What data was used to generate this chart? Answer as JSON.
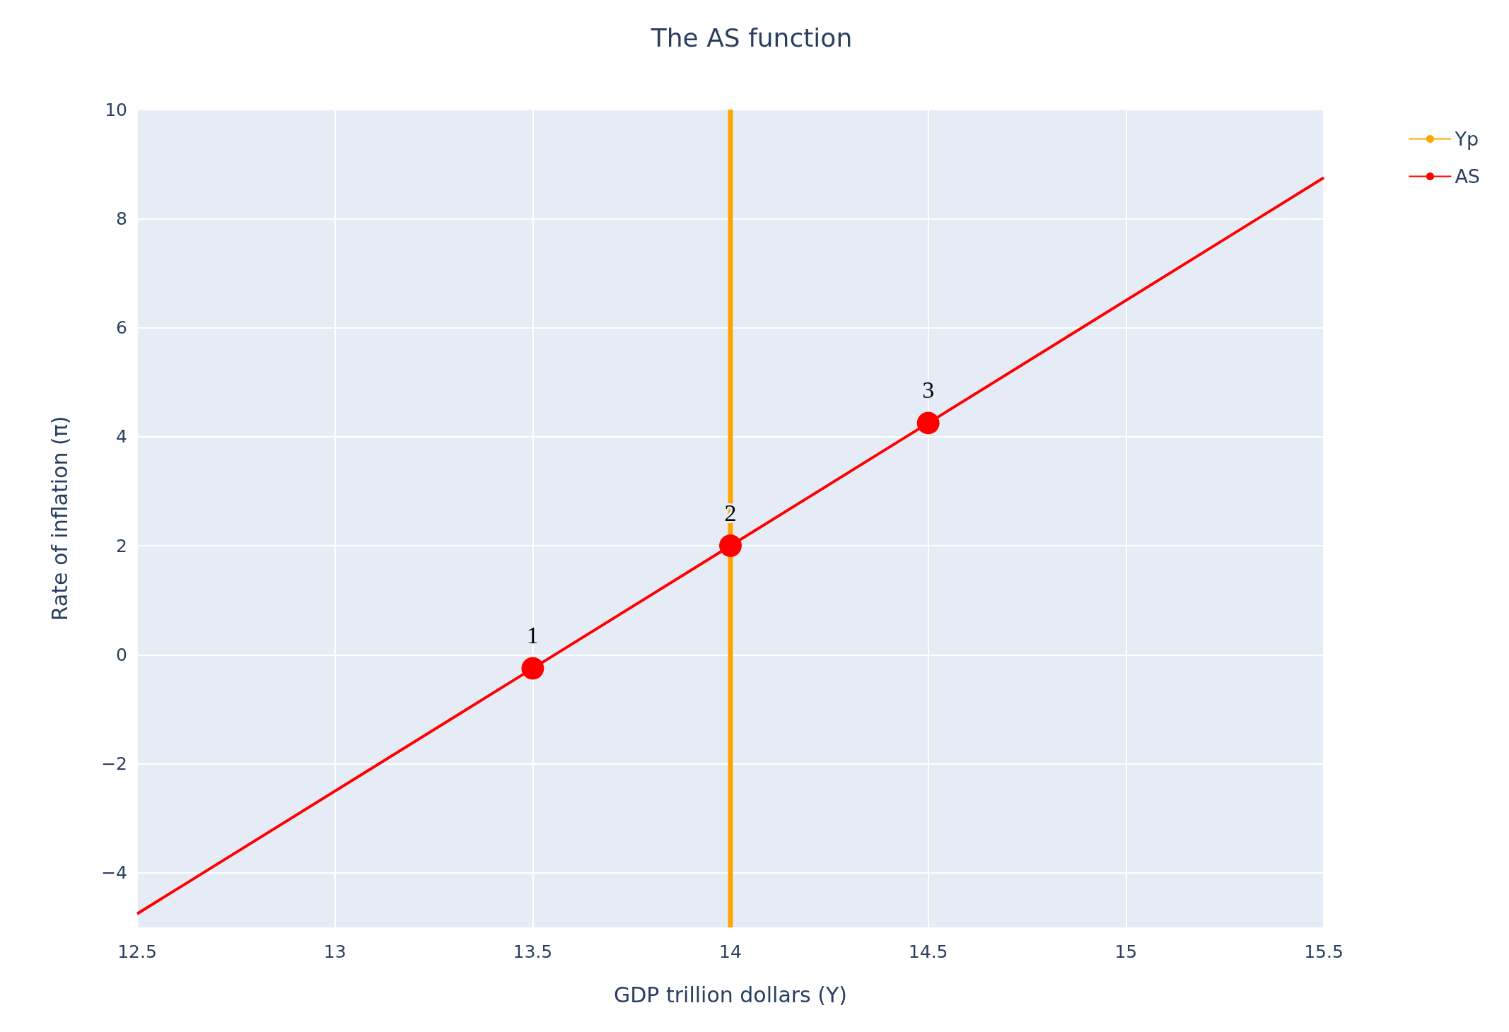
{
  "chart_data": {
    "type": "line",
    "title": "The AS function",
    "xlabel": "GDP trillion dollars (Y)",
    "ylabel": "Rate of inflation (π)",
    "xlim": [
      12.5,
      15.5
    ],
    "xticks": [
      12.5,
      13,
      13.5,
      14,
      14.5,
      15,
      15.5
    ],
    "ylim": [
      -5,
      10
    ],
    "yticks": [
      -4,
      -2,
      0,
      2,
      4,
      6,
      8,
      10
    ],
    "grid": true,
    "legend": "top right",
    "series": [
      {
        "name": "Yp",
        "color": "#ffa500",
        "x": [
          14,
          14
        ],
        "values": [
          -5,
          10
        ]
      },
      {
        "name": "AS",
        "color": "#ff0000",
        "x": [
          12.5,
          15.5
        ],
        "values": [
          -4.75,
          8.75
        ]
      },
      {
        "type": "scatter",
        "color": "#ff0000",
        "x": [
          13.5,
          14,
          14.5
        ],
        "values": [
          -0.25,
          2,
          4.25
        ]
      }
    ],
    "annotations": [
      {
        "text": "1",
        "x": 13.5,
        "y": -0.25
      },
      {
        "text": "2",
        "x": 14,
        "y": 2
      },
      {
        "text": "3",
        "x": 14.5,
        "y": 4.25
      }
    ]
  }
}
